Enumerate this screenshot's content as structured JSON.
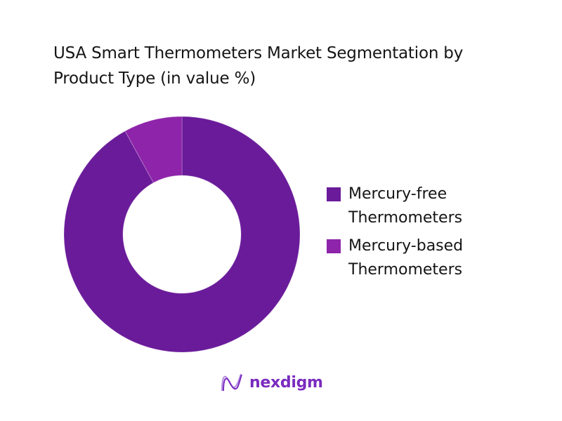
{
  "title": "USA Smart Thermometers Market Segmentation by Product Type (in value %)",
  "title_lines": [
    "USA Smart Thermometers Market Segmentation by",
    "Product Type (in value %)"
  ],
  "legend": [
    {
      "label": "Mercury-free Thermometers",
      "color": "#6a1b9a"
    },
    {
      "label": "Mercury-based Thermometers",
      "color": "#8e24aa"
    }
  ],
  "logo": {
    "text": "nexdigm"
  },
  "chart_data": {
    "type": "pie",
    "variant": "donut",
    "title": "USA Smart Thermometers Market Segmentation by Product Type (in value %)",
    "categories": [
      "Mercury-free Thermometers",
      "Mercury-based Thermometers"
    ],
    "values": [
      92,
      8
    ],
    "colors": [
      "#6a1b9a",
      "#8e24aa"
    ],
    "legend_position": "right",
    "data_labels": false
  }
}
